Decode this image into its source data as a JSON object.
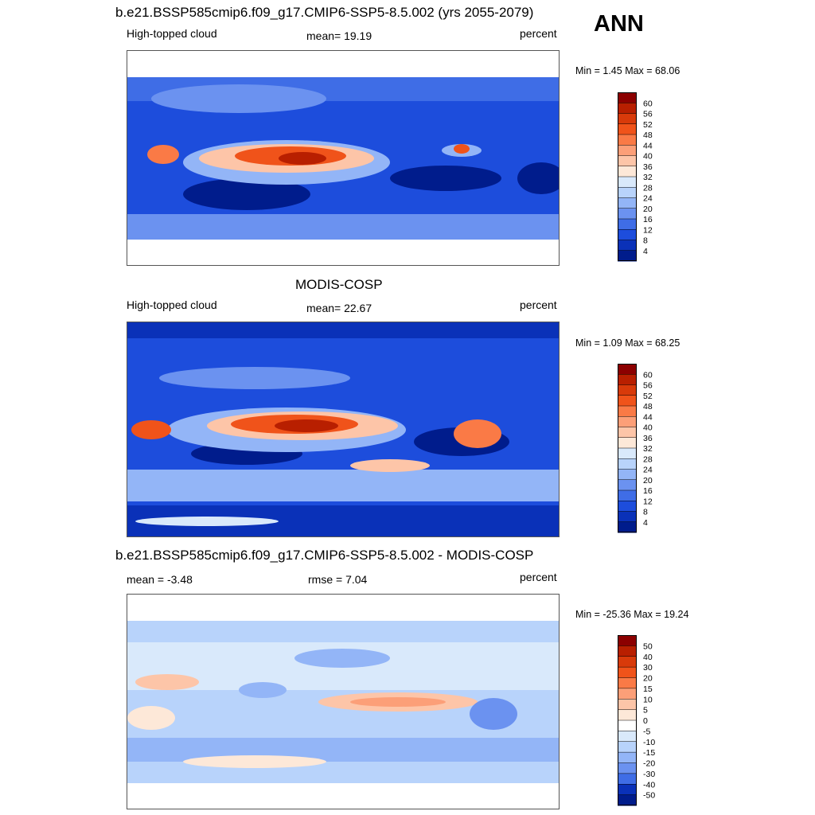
{
  "ann_label": "ANN",
  "panels": [
    {
      "title": "b.e21.BSSP585cmip6.f09_g17.CMIP6-SSP5-8.5.002 (yrs 2055-2079)",
      "left_label": "High-topped cloud",
      "center_label": "mean=  19.19",
      "units": "percent",
      "minmax": "Min =   1.45 Max =  68.06",
      "colorbar": {
        "labels": [
          "60",
          "56",
          "52",
          "48",
          "44",
          "40",
          "36",
          "32",
          "28",
          "24",
          "20",
          "16",
          "12",
          "8",
          "4"
        ],
        "colors": [
          "#8c0000",
          "#b81f00",
          "#d83a0a",
          "#f0531a",
          "#fa7a46",
          "#fc9f78",
          "#fdc5a8",
          "#fde8d8",
          "#d9e9fb",
          "#b8d3fb",
          "#93b5f7",
          "#6b92f0",
          "#3f6de6",
          "#1d4ddc",
          "#0a31b8",
          "#001c8c"
        ]
      },
      "chart_data": {
        "type": "heatmap",
        "title": "b.e21.BSSP585cmip6.f09_g17.CMIP6-SSP5-8.5.002 (yrs 2055-2079)",
        "variable": "High-topped cloud",
        "units": "percent",
        "mean": 19.19,
        "min": 1.45,
        "max": 68.06,
        "contour_levels": [
          4,
          8,
          12,
          16,
          20,
          24,
          28,
          32,
          36,
          40,
          44,
          48,
          52,
          56,
          60
        ]
      }
    },
    {
      "title": "MODIS-COSP",
      "left_label": "High-topped cloud",
      "center_label": "mean=  22.67",
      "units": "percent",
      "minmax": "Min =   1.09 Max =  68.25",
      "colorbar": {
        "labels": [
          "60",
          "56",
          "52",
          "48",
          "44",
          "40",
          "36",
          "32",
          "28",
          "24",
          "20",
          "16",
          "12",
          "8",
          "4"
        ],
        "colors": [
          "#8c0000",
          "#b81f00",
          "#d83a0a",
          "#f0531a",
          "#fa7a46",
          "#fc9f78",
          "#fdc5a8",
          "#fde8d8",
          "#d9e9fb",
          "#b8d3fb",
          "#93b5f7",
          "#6b92f0",
          "#3f6de6",
          "#1d4ddc",
          "#0a31b8",
          "#001c8c"
        ]
      },
      "chart_data": {
        "type": "heatmap",
        "title": "MODIS-COSP",
        "variable": "High-topped cloud",
        "units": "percent",
        "mean": 22.67,
        "min": 1.09,
        "max": 68.25,
        "contour_levels": [
          4,
          8,
          12,
          16,
          20,
          24,
          28,
          32,
          36,
          40,
          44,
          48,
          52,
          56,
          60
        ]
      }
    },
    {
      "title": "b.e21.BSSP585cmip6.f09_g17.CMIP6-SSP5-8.5.002 - MODIS-COSP",
      "left_label": "mean =  -3.48",
      "center_label": "rmse =   7.04",
      "units": "percent",
      "minmax": "Min = -25.36 Max =  19.24",
      "colorbar": {
        "labels": [
          "50",
          "40",
          "30",
          "20",
          "15",
          "10",
          "5",
          "0",
          "-5",
          "-10",
          "-15",
          "-20",
          "-30",
          "-40",
          "-50"
        ],
        "colors": [
          "#8c0000",
          "#b81f00",
          "#d83a0a",
          "#f0531a",
          "#fa7a46",
          "#fc9f78",
          "#fdc5a8",
          "#fde8d8",
          "#ffffff",
          "#d9e9fb",
          "#b8d3fb",
          "#93b5f7",
          "#6b92f0",
          "#3f6de6",
          "#0a31b8",
          "#001c8c"
        ]
      },
      "chart_data": {
        "type": "heatmap",
        "title": "b.e21.BSSP585cmip6.f09_g17.CMIP6-SSP5-8.5.002 - MODIS-COSP",
        "units": "percent",
        "mean": -3.48,
        "rmse": 7.04,
        "min": -25.36,
        "max": 19.24,
        "contour_levels": [
          -50,
          -40,
          -30,
          -20,
          -15,
          -10,
          -5,
          0,
          5,
          10,
          15,
          20,
          30,
          40,
          50
        ]
      }
    }
  ]
}
